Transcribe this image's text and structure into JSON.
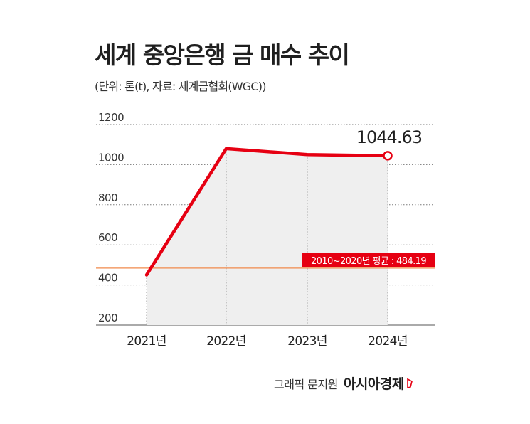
{
  "chart_data": {
    "type": "area",
    "title": "세계 중앙은행 금 매수 추이",
    "subtitle": "(단위: 톤(t), 자료: 세계금협회(WGC))",
    "categories": [
      "2021년",
      "2022년",
      "2023년",
      "2024년"
    ],
    "values": [
      450,
      1080,
      1050,
      1044.63
    ],
    "y_ticks": [
      "1200",
      "1000",
      "800",
      "600",
      "400",
      "200"
    ],
    "ylim": [
      200,
      1200
    ],
    "grid": true,
    "line_color": "#e60012",
    "area_color": "#efefef",
    "last_value_label": "1044.63",
    "reference_line": {
      "value": 484.19,
      "label": "2010~2020년 평균 : 484.19",
      "color": "#e60012"
    }
  },
  "credit": {
    "author": "그래픽 문지원",
    "brand": "아시아경제"
  }
}
